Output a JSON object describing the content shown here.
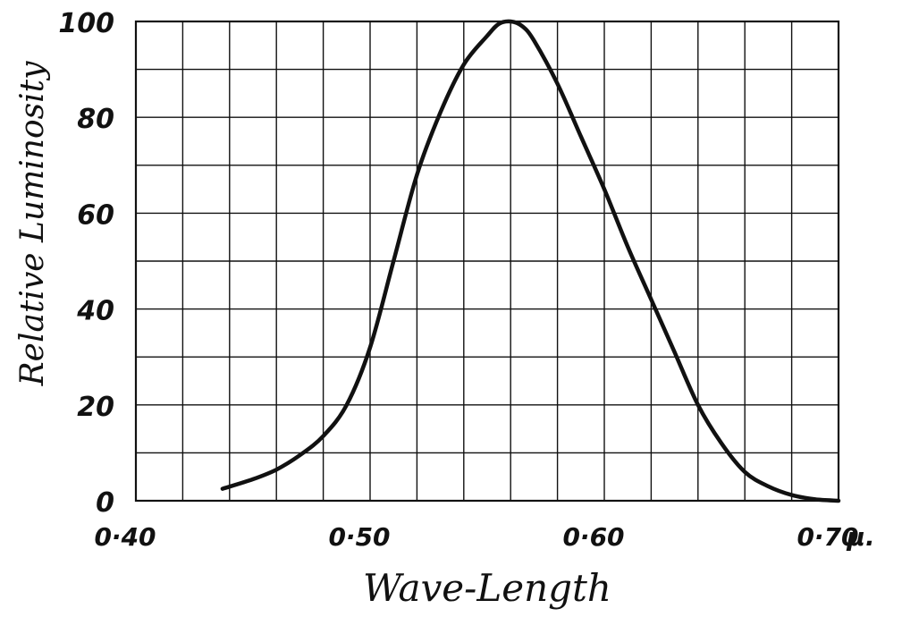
{
  "chart_data": {
    "type": "line",
    "title": "",
    "xlabel": "Wave-Length",
    "ylabel": "Relative Luminosity",
    "x_unit": "μ.",
    "xlim": [
      0.4,
      0.7
    ],
    "ylim": [
      0,
      100
    ],
    "grid": true,
    "x_ticks": [
      0.4,
      0.5,
      0.6,
      0.7
    ],
    "x_tick_labels": [
      "0·40",
      "0·50",
      "0·60",
      "0·70"
    ],
    "y_ticks": [
      0,
      20,
      40,
      60,
      80,
      100
    ],
    "y_tick_labels": [
      "0",
      "20",
      "40",
      "60",
      "80",
      "100"
    ],
    "series": [
      {
        "x": [
          0.437,
          0.45,
          0.46,
          0.47,
          0.48,
          0.49,
          0.5,
          0.51,
          0.52,
          0.53,
          0.54,
          0.55,
          0.555,
          0.56,
          0.565,
          0.57,
          0.58,
          0.59,
          0.6,
          0.61,
          0.62,
          0.63,
          0.64,
          0.65,
          0.66,
          0.67,
          0.68,
          0.69,
          0.7
        ],
        "y": [
          2.5,
          4.5,
          6.5,
          9.5,
          13.5,
          20,
          32,
          50,
          68,
          81,
          91,
          97,
          99.5,
          100,
          99,
          96,
          87,
          76,
          65,
          53,
          42,
          31,
          20,
          12,
          6,
          3,
          1.2,
          0.3,
          0
        ]
      }
    ]
  }
}
